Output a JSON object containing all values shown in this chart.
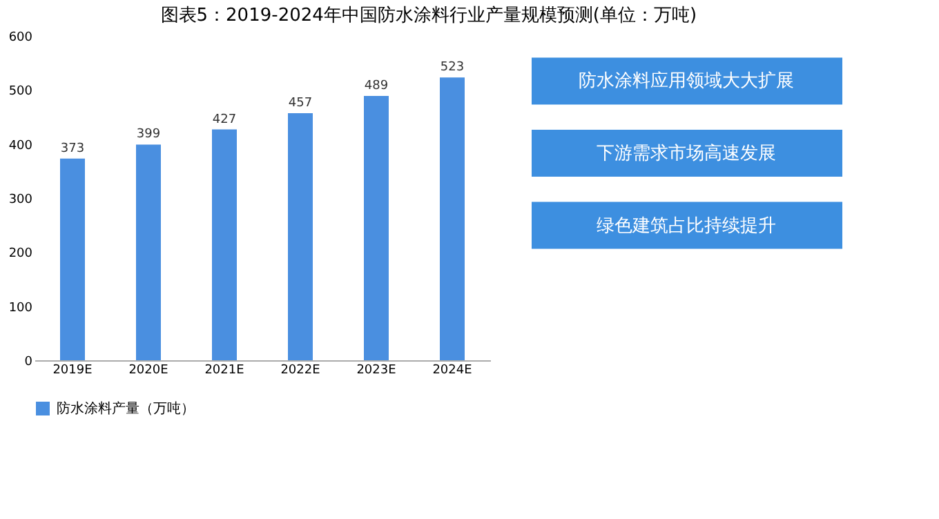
{
  "chart_data": {
    "type": "bar",
    "title": "图表5：2019-2024年中国防水涂料行业产量规模预测(单位：万吨)",
    "categories": [
      "2019E",
      "2020E",
      "2021E",
      "2022E",
      "2023E",
      "2024E"
    ],
    "series": [
      {
        "name": "防水涂料产量（万吨）",
        "color": "#4a8fe0",
        "values": [
          373,
          399,
          427,
          457,
          489,
          523
        ]
      }
    ],
    "ylim": [
      0,
      600
    ],
    "yticks": [
      0,
      100,
      200,
      300,
      400,
      500,
      600
    ],
    "grid": false,
    "legend": "bottom",
    "data_labels": true,
    "annotations": [
      "防水涂料应用领域大大扩展",
      "下游需求市场高速发展",
      "绿色建筑占比持续提升"
    ]
  }
}
